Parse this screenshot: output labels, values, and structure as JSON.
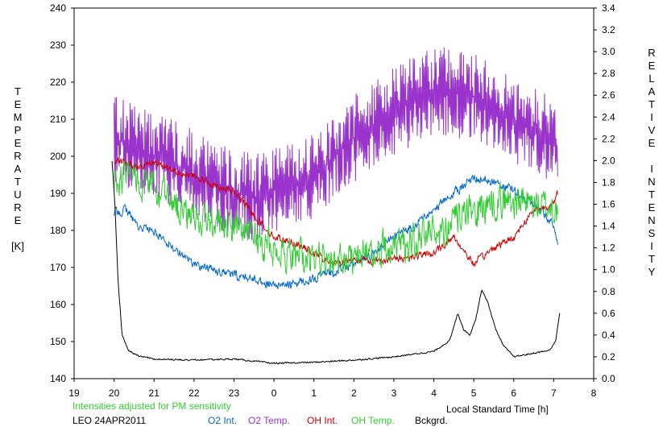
{
  "chart_data": {
    "type": "line",
    "xlabel": "Local Standard Time [h]",
    "ylabel_left": [
      "T",
      "E",
      "M",
      "P",
      "E",
      "R",
      "A",
      "T",
      "U",
      "R",
      "E",
      "",
      "[K]"
    ],
    "ylabel_right": [
      "R",
      "E",
      "L",
      "A",
      "T",
      "I",
      "V",
      "E",
      "",
      "I",
      "N",
      "T",
      "E",
      "N",
      "S",
      "I",
      "T",
      "Y"
    ],
    "xlim": [
      19,
      32
    ],
    "ylim_left": [
      140,
      240
    ],
    "ylim_right": [
      0.0,
      3.4
    ],
    "x_ticks": [
      19,
      20,
      21,
      22,
      23,
      24,
      25,
      26,
      27,
      28,
      29,
      30,
      31,
      32
    ],
    "x_tick_labels": [
      "19",
      "20",
      "21",
      "22",
      "23",
      "0",
      "1",
      "2",
      "3",
      "4",
      "5",
      "6",
      "7",
      "8"
    ],
    "y_left_ticks": [
      "140",
      "150",
      "160",
      "170",
      "180",
      "190",
      "200",
      "210",
      "220",
      "230",
      "240"
    ],
    "y_right_ticks": [
      "0.0",
      "0.2",
      "0.4",
      "0.6",
      "0.8",
      "1.0",
      "1.2",
      "1.4",
      "1.6",
      "1.8",
      "2.0",
      "2.2",
      "2.4",
      "2.6",
      "2.8",
      "3.0",
      "3.2",
      "3.4"
    ],
    "grid": false,
    "note": "Intensities adjusted for PM sensitivity",
    "station": "LEO 24APR2011",
    "series": [
      {
        "name": "O2 Temp.",
        "axis": "left",
        "color": "#9933cc",
        "noise": 12,
        "x": [
          20.0,
          20.5,
          21.0,
          21.5,
          22.0,
          22.5,
          23.0,
          23.5,
          24.0,
          24.5,
          25.0,
          25.5,
          26.0,
          26.5,
          27.0,
          27.5,
          28.0,
          28.5,
          29.0,
          29.5,
          30.0,
          30.5,
          31.0,
          31.1
        ],
        "y": [
          205,
          202,
          200,
          198,
          195,
          192,
          190,
          189,
          191,
          193,
          195,
          200,
          205,
          208,
          212,
          215,
          218,
          217,
          216,
          213,
          210,
          207,
          205,
          200
        ]
      },
      {
        "name": "O2 Int.",
        "axis": "right",
        "color": "#0066cc",
        "noise": 0.06,
        "x": [
          20.0,
          20.3,
          20.6,
          21.0,
          21.5,
          22.0,
          22.5,
          23.0,
          23.5,
          24.0,
          24.5,
          25.0,
          25.5,
          26.0,
          26.5,
          27.0,
          27.5,
          28.0,
          28.5,
          29.0,
          29.5,
          30.0,
          30.5,
          31.0,
          31.1
        ],
        "y": [
          1.52,
          1.55,
          1.4,
          1.35,
          1.2,
          1.05,
          1.0,
          0.95,
          0.92,
          0.85,
          0.87,
          0.92,
          0.98,
          1.05,
          1.15,
          1.3,
          1.4,
          1.55,
          1.7,
          1.85,
          1.8,
          1.72,
          1.6,
          1.4,
          1.25
        ]
      },
      {
        "name": "OH Int.",
        "axis": "right",
        "color": "#cc0000",
        "noise": 0.05,
        "x": [
          20.0,
          20.5,
          21.0,
          21.5,
          22.0,
          22.5,
          23.0,
          23.5,
          24.0,
          24.5,
          25.0,
          25.5,
          26.0,
          26.5,
          27.0,
          27.5,
          28.0,
          28.5,
          29.0,
          29.5,
          30.0,
          30.5,
          31.0,
          31.1
        ],
        "y": [
          2.0,
          1.95,
          1.98,
          1.92,
          1.85,
          1.78,
          1.72,
          1.5,
          1.3,
          1.25,
          1.15,
          1.05,
          1.1,
          1.08,
          1.1,
          1.12,
          1.15,
          1.3,
          1.05,
          1.2,
          1.3,
          1.55,
          1.6,
          1.7
        ]
      },
      {
        "name": "OH Temp.",
        "axis": "left",
        "color": "#33cc33",
        "noise": 7,
        "x": [
          20.0,
          20.5,
          21.0,
          21.5,
          22.0,
          22.5,
          23.0,
          23.5,
          24.0,
          24.5,
          25.0,
          25.5,
          26.0,
          26.5,
          27.0,
          27.5,
          28.0,
          28.5,
          29.0,
          29.5,
          30.0,
          30.5,
          31.0,
          31.1
        ],
        "y": [
          193,
          195,
          191,
          187,
          184,
          182,
          181,
          178,
          175,
          173,
          172,
          171,
          173,
          174,
          176,
          177,
          180,
          182,
          185,
          188,
          188,
          187,
          186,
          185
        ]
      },
      {
        "name": "Bckgrd.",
        "axis": "right",
        "color": "#000000",
        "noise": 0.01,
        "x": [
          19.95,
          20.02,
          20.1,
          20.2,
          20.35,
          20.6,
          21.0,
          22.0,
          23.0,
          24.0,
          25.0,
          26.0,
          27.0,
          28.0,
          28.4,
          28.6,
          28.75,
          28.9,
          29.05,
          29.2,
          29.35,
          29.55,
          29.75,
          30.0,
          30.3,
          30.6,
          30.9,
          31.05,
          31.15
        ],
        "y": [
          2.0,
          1.6,
          0.9,
          0.4,
          0.26,
          0.21,
          0.18,
          0.17,
          0.18,
          0.14,
          0.15,
          0.17,
          0.2,
          0.25,
          0.35,
          0.6,
          0.45,
          0.4,
          0.55,
          0.82,
          0.7,
          0.45,
          0.3,
          0.2,
          0.22,
          0.24,
          0.26,
          0.35,
          0.6
        ]
      }
    ]
  },
  "legend_items": [
    {
      "label": "O2 Int.",
      "color": "#0066cc"
    },
    {
      "label": "O2 Temp.",
      "color": "#9933cc"
    },
    {
      "label": "OH Int.",
      "color": "#cc0000"
    },
    {
      "label": "OH Temp.",
      "color": "#33cc33"
    },
    {
      "label": "Bckgrd.",
      "color": "#000000"
    }
  ],
  "colors": {
    "note": "#33cc33",
    "text": "#000000",
    "axis": "#000000"
  }
}
